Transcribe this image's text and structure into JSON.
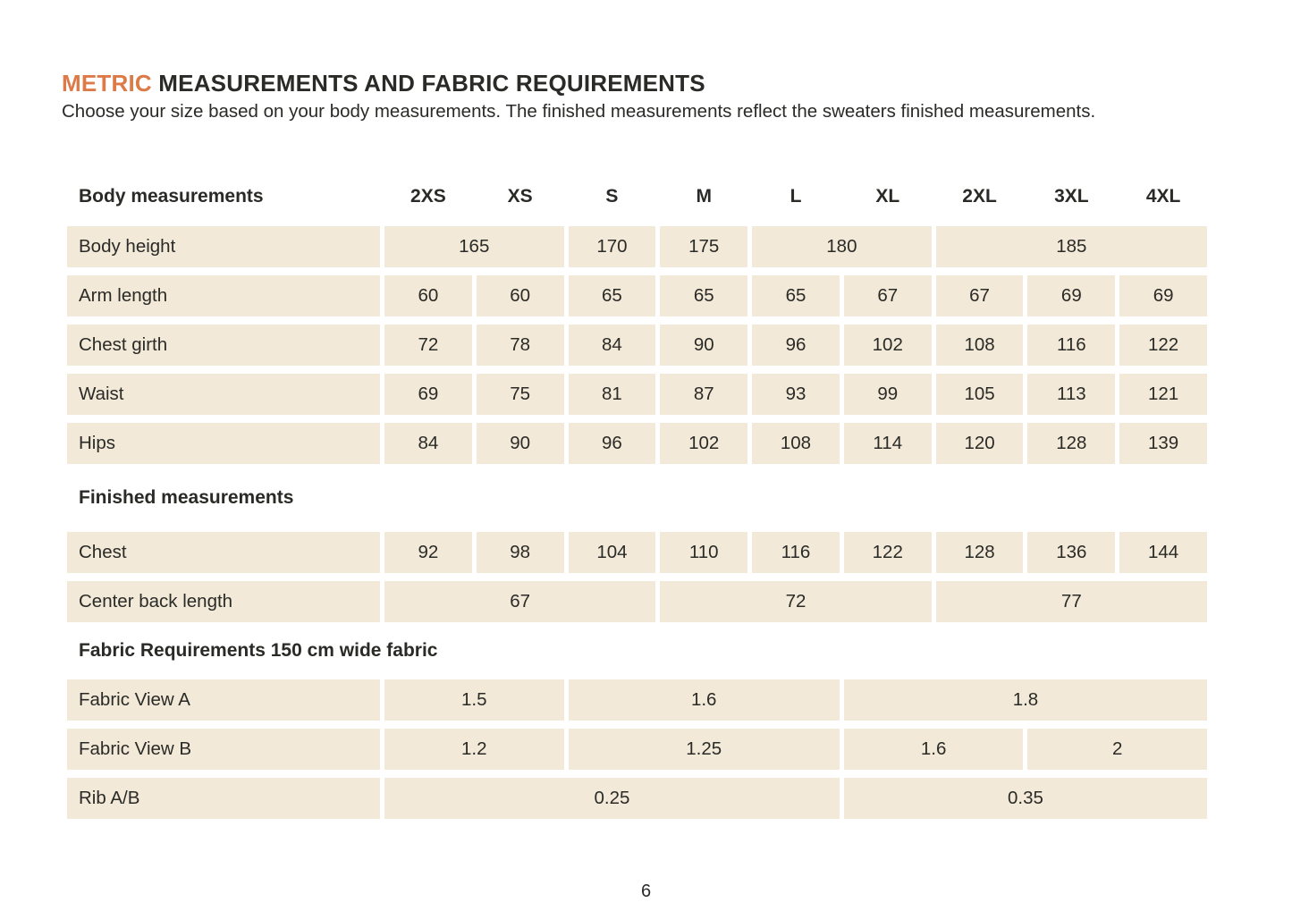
{
  "page": {
    "title_accent": "METRIC",
    "title_rest": "MEASUREMENTS AND FABRIC REQUIREMENTS",
    "subtitle": "Choose your size based on your body measurements. The finished measurements reflect the sweaters finished measurements.",
    "page_number": "6"
  },
  "colors": {
    "accent_orange": "#dd7a48",
    "cell_beige": "#f2e9d8",
    "text": "#2a2a27",
    "background": "#ffffff"
  },
  "table": {
    "header": {
      "label": "Body measurements",
      "sizes": [
        "2XS",
        "XS",
        "S",
        "M",
        "L",
        "XL",
        "2XL",
        "3XL",
        "4XL"
      ]
    },
    "sections": {
      "finished": "Finished measurements",
      "fabric": "Fabric Requirements 150 cm wide fabric"
    },
    "rows": [
      {
        "label": "Body height",
        "cells": [
          {
            "v": "165",
            "span": 2,
            "sizes": "2XS-XS"
          },
          {
            "v": "170",
            "span": 1,
            "sizes": "S"
          },
          {
            "v": "175",
            "span": 1,
            "sizes": "M"
          },
          {
            "v": "180",
            "span": 2,
            "sizes": "L-XL"
          },
          {
            "v": "185",
            "span": 3,
            "sizes": "2XL-4XL"
          }
        ]
      },
      {
        "label": "Arm length",
        "cells": [
          {
            "v": "60",
            "span": 1
          },
          {
            "v": "60",
            "span": 1
          },
          {
            "v": "65",
            "span": 1
          },
          {
            "v": "65",
            "span": 1
          },
          {
            "v": "65",
            "span": 1
          },
          {
            "v": "67",
            "span": 1
          },
          {
            "v": "67",
            "span": 1
          },
          {
            "v": "69",
            "span": 1
          },
          {
            "v": "69",
            "span": 1
          }
        ]
      },
      {
        "label": "Chest girth",
        "cells": [
          {
            "v": "72",
            "span": 1
          },
          {
            "v": "78",
            "span": 1
          },
          {
            "v": "84",
            "span": 1
          },
          {
            "v": "90",
            "span": 1
          },
          {
            "v": "96",
            "span": 1
          },
          {
            "v": "102",
            "span": 1
          },
          {
            "v": "108",
            "span": 1
          },
          {
            "v": "116",
            "span": 1
          },
          {
            "v": "122",
            "span": 1
          }
        ]
      },
      {
        "label": "Waist",
        "cells": [
          {
            "v": "69",
            "span": 1
          },
          {
            "v": "75",
            "span": 1
          },
          {
            "v": "81",
            "span": 1
          },
          {
            "v": "87",
            "span": 1
          },
          {
            "v": "93",
            "span": 1
          },
          {
            "v": "99",
            "span": 1
          },
          {
            "v": "105",
            "span": 1
          },
          {
            "v": "113",
            "span": 1
          },
          {
            "v": "121",
            "span": 1
          }
        ]
      },
      {
        "label": "Hips",
        "cells": [
          {
            "v": "84",
            "span": 1
          },
          {
            "v": "90",
            "span": 1
          },
          {
            "v": "96",
            "span": 1
          },
          {
            "v": "102",
            "span": 1
          },
          {
            "v": "108",
            "span": 1
          },
          {
            "v": "114",
            "span": 1
          },
          {
            "v": "120",
            "span": 1
          },
          {
            "v": "128",
            "span": 1
          },
          {
            "v": "139",
            "span": 1
          }
        ]
      },
      {
        "label": "Chest",
        "cells": [
          {
            "v": "92",
            "span": 1
          },
          {
            "v": "98",
            "span": 1
          },
          {
            "v": "104",
            "span": 1
          },
          {
            "v": "110",
            "span": 1
          },
          {
            "v": "116",
            "span": 1
          },
          {
            "v": "122",
            "span": 1
          },
          {
            "v": "128",
            "span": 1
          },
          {
            "v": "136",
            "span": 1
          },
          {
            "v": "144",
            "span": 1
          }
        ]
      },
      {
        "label": "Center back length",
        "cells": [
          {
            "v": "67",
            "span": 3,
            "sizes": "2XS-S"
          },
          {
            "v": "72",
            "span": 3,
            "sizes": "M-XL"
          },
          {
            "v": "77",
            "span": 3,
            "sizes": "2XL-4XL"
          }
        ]
      },
      {
        "label": "Fabric View A",
        "cells": [
          {
            "v": "1.5",
            "span": 2,
            "sizes": "2XS-XS"
          },
          {
            "v": "1.6",
            "span": 3,
            "sizes": "S-L"
          },
          {
            "v": "1.8",
            "span": 4,
            "sizes": "XL-4XL"
          }
        ]
      },
      {
        "label": "Fabric View B",
        "cells": [
          {
            "v": "1.2",
            "span": 2,
            "sizes": "2XS-XS"
          },
          {
            "v": "1.25",
            "span": 3,
            "sizes": "S-L"
          },
          {
            "v": "1.6",
            "span": 2,
            "sizes": "XL-2XL"
          },
          {
            "v": "2",
            "span": 2,
            "sizes": "3XL-4XL"
          }
        ]
      },
      {
        "label": "Rib A/B",
        "cells": [
          {
            "v": "0.25",
            "span": 5,
            "sizes": "2XS-L"
          },
          {
            "v": "0.35",
            "span": 4,
            "sizes": "XL-4XL"
          }
        ]
      }
    ]
  }
}
